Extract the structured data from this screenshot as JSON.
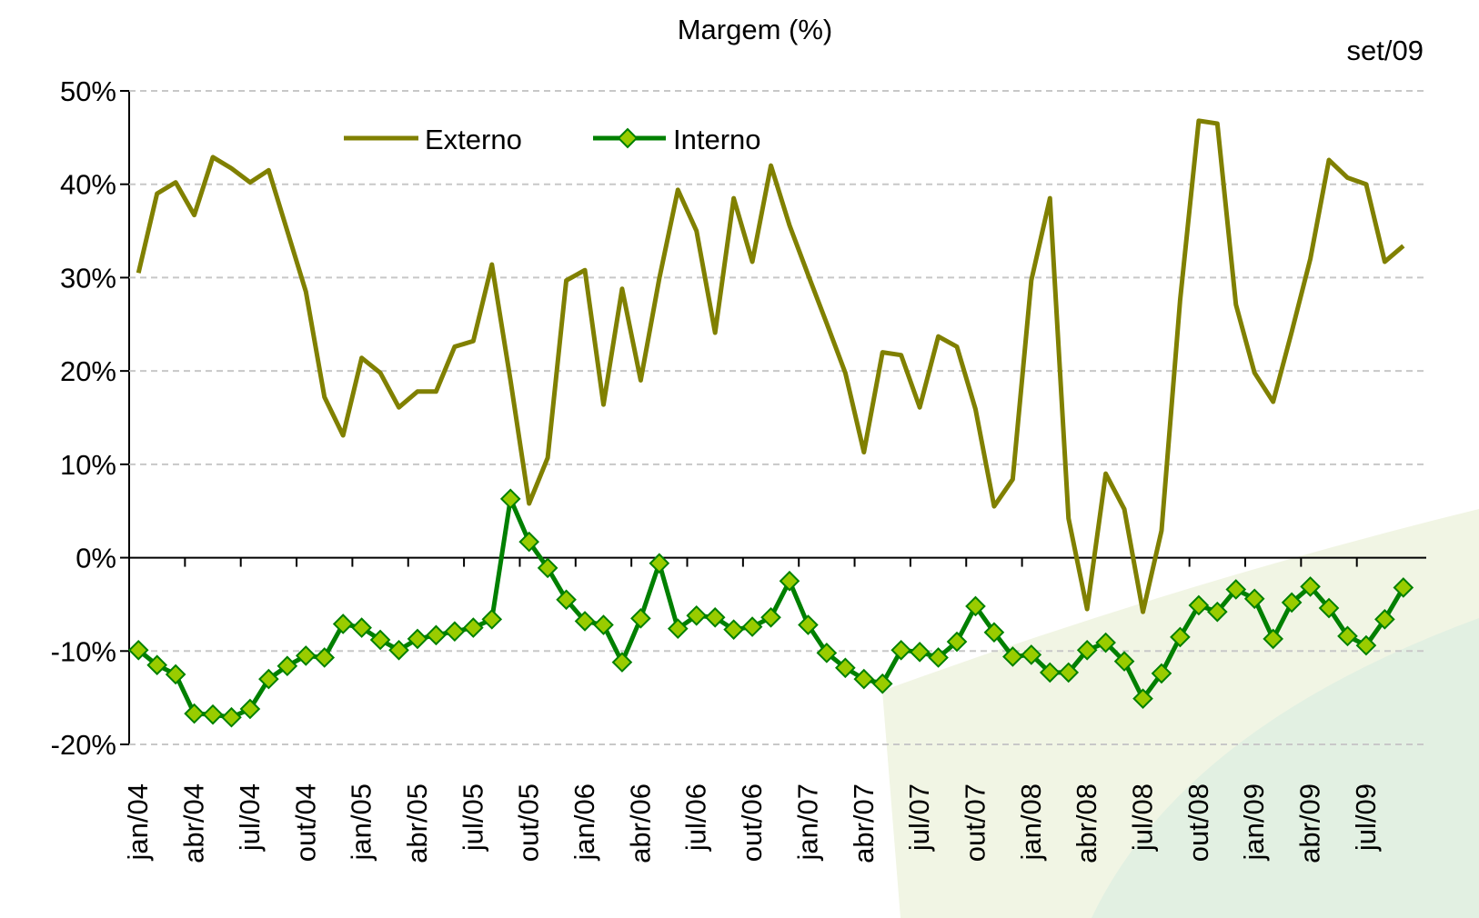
{
  "chart_data": {
    "type": "line",
    "title": "Margem (%)",
    "annotation": "set/09",
    "categories": [
      "jan/04",
      null,
      null,
      "abr/04",
      null,
      null,
      "jul/04",
      null,
      null,
      "out/04",
      null,
      null,
      "jan/05",
      null,
      null,
      "abr/05",
      null,
      null,
      "jul/05",
      null,
      null,
      "out/05",
      null,
      null,
      "jan/06",
      null,
      null,
      "abr/06",
      null,
      null,
      "jul/06",
      null,
      null,
      "out/06",
      null,
      null,
      "jan/07",
      null,
      null,
      "abr/07",
      null,
      null,
      "jul/07",
      null,
      null,
      "out/07",
      null,
      null,
      "jan/08",
      null,
      null,
      "abr/08",
      null,
      null,
      "jul/08",
      null,
      null,
      "out/08",
      null,
      null,
      "jan/09",
      null,
      null,
      "abr/09",
      null,
      null,
      "jul/09",
      null,
      null
    ],
    "series": [
      {
        "name": "Externo",
        "color": "#808000",
        "marker": false,
        "values": [
          30.5,
          39,
          40.2,
          36.7,
          42.9,
          41.7,
          40.2,
          41.5,
          35,
          28.5,
          17.2,
          13.1,
          21.4,
          19.8,
          16.1,
          17.8,
          17.8,
          22.6,
          23.2,
          31.4,
          19,
          5.8,
          10.7,
          29.7,
          30.8,
          16.4,
          28.8,
          19,
          29.9,
          39.4,
          35,
          24.1,
          38.5,
          31.7,
          42,
          35.6,
          30.3,
          25.1,
          19.8,
          11.3,
          22,
          21.7,
          16.1,
          23.7,
          22.6,
          15.9,
          5.5,
          8.4,
          29.7,
          38.5,
          4.2,
          -5.5,
          9,
          5.2,
          -5.8,
          2.9,
          27.6,
          46.8,
          46.5,
          27.1,
          19.8,
          16.7,
          24.2,
          32,
          42.6,
          40.7,
          40,
          31.7,
          33.4
        ]
      },
      {
        "name": "Interno",
        "color": "#008000",
        "marker": true,
        "marker_color": "#99cc00",
        "values": [
          -9.9,
          -11.5,
          -12.5,
          -16.7,
          -16.8,
          -17.1,
          -16.2,
          -13,
          -11.6,
          -10.5,
          -10.7,
          -7.1,
          -7.5,
          -8.8,
          -9.9,
          -8.7,
          -8.3,
          -7.9,
          -7.5,
          -6.6,
          6.3,
          1.7,
          -1.1,
          -4.5,
          -6.8,
          -7.2,
          -11.2,
          -6.5,
          -0.6,
          -7.6,
          -6.2,
          -6.4,
          -7.7,
          -7.4,
          -6.4,
          -2.5,
          -7.2,
          -10.2,
          -11.8,
          -13,
          -13.5,
          -9.9,
          -10.1,
          -10.7,
          -9,
          -5.2,
          -8,
          -10.6,
          -10.4,
          -12.3,
          -12.3,
          -9.9,
          -9.1,
          -11.1,
          -15.1,
          -12.4,
          -8.5,
          -5.1,
          -5.8,
          -3.4,
          -4.4,
          -8.7,
          -4.8,
          -3.1,
          -5.4,
          -8.4,
          -9.4,
          -6.6,
          -3.2
        ]
      }
    ],
    "ylim": [
      -20,
      50
    ],
    "yticks": [
      {
        "value": -20,
        "label": "-20%"
      },
      {
        "value": -10,
        "label": "-10%"
      },
      {
        "value": 0,
        "label": "0%"
      },
      {
        "value": 10,
        "label": "10%"
      },
      {
        "value": 20,
        "label": "20%"
      },
      {
        "value": 30,
        "label": "30%"
      },
      {
        "value": 40,
        "label": "40%"
      },
      {
        "value": 50,
        "label": "50%"
      }
    ],
    "grid": true
  }
}
